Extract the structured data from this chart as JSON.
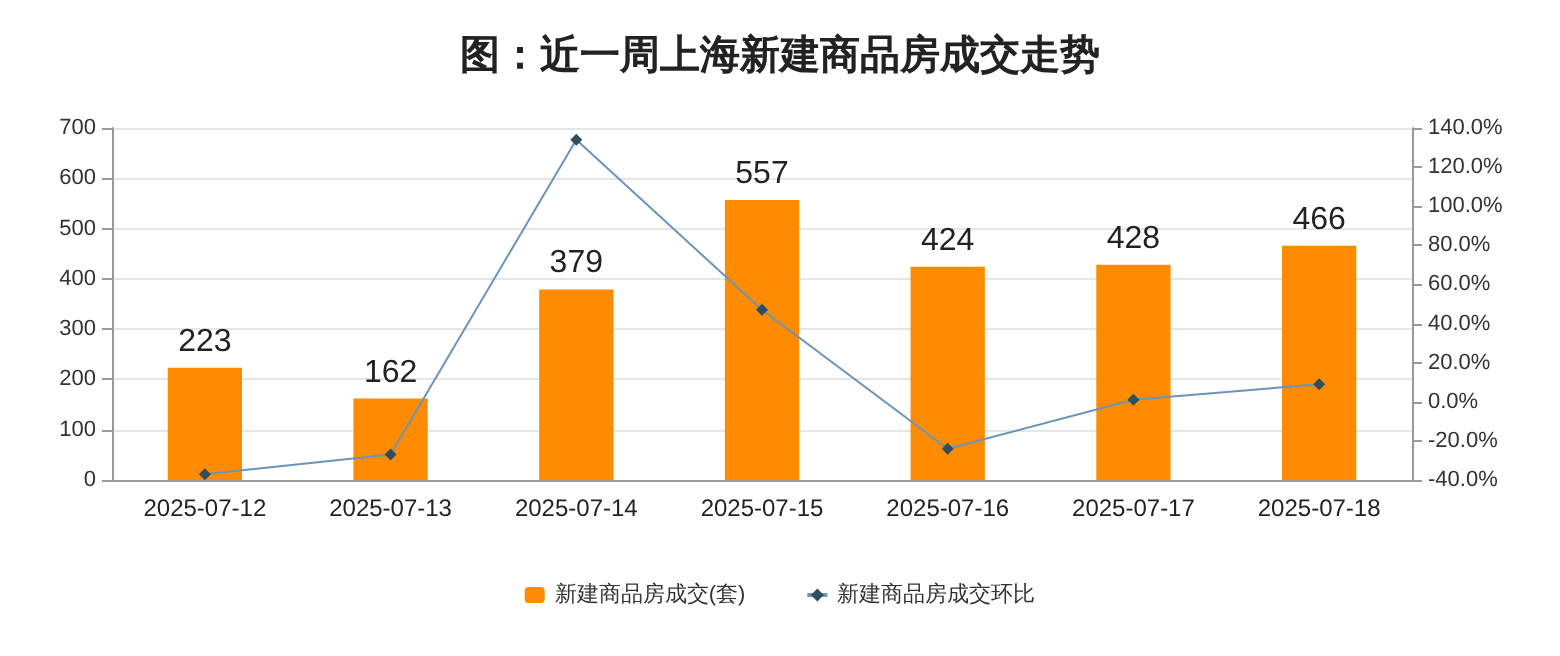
{
  "chart_data": {
    "type": "bar",
    "title": "图：近一周上海新建商品房成交走势",
    "categories": [
      "2025-07-12",
      "2025-07-13",
      "2025-07-14",
      "2025-07-15",
      "2025-07-16",
      "2025-07-17",
      "2025-07-18"
    ],
    "series": [
      {
        "name": "新建商品房成交(套)",
        "color": "#ff8c00",
        "values": [
          223,
          162,
          379,
          557,
          424,
          428,
          466
        ],
        "value_labels": [
          "223",
          "162",
          "379",
          "557",
          "424",
          "428",
          "466"
        ]
      },
      {
        "name": "新建商品房成交环比",
        "type": "line",
        "axis": "y2",
        "color": "#6b93bb",
        "marker": "diamond",
        "values": [
          -37,
          -27,
          134,
          47,
          -24,
          1,
          9
        ]
      }
    ],
    "ylim": [
      0,
      700
    ],
    "yticks": [
      0,
      100,
      200,
      300,
      400,
      500,
      600,
      700
    ],
    "y2lim": [
      -40,
      140
    ],
    "y2ticks": [
      {
        "value": -40,
        "label": "-40.0%"
      },
      {
        "value": -20,
        "label": "-20.0%"
      },
      {
        "value": 0,
        "label": "0.0%"
      },
      {
        "value": 20,
        "label": "20.0%"
      },
      {
        "value": 40,
        "label": "40.0%"
      },
      {
        "value": 60,
        "label": "60.0%"
      },
      {
        "value": 80,
        "label": "80.0%"
      },
      {
        "value": 100,
        "label": "100.0%"
      },
      {
        "value": 120,
        "label": "120.0%"
      },
      {
        "value": 140,
        "label": "140.0%"
      }
    ],
    "grid": "y",
    "legend": "bottom"
  }
}
